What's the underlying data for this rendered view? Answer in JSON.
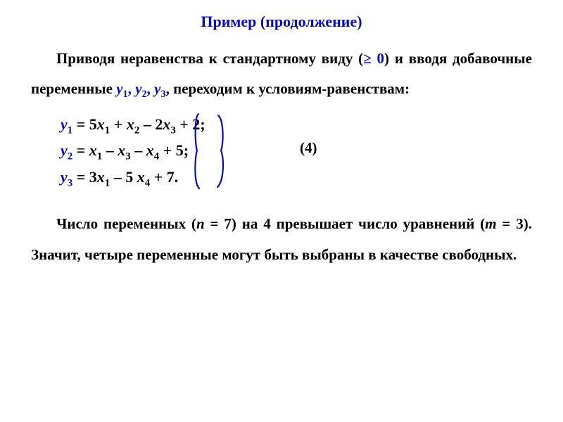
{
  "colors": {
    "text": "#000000",
    "accent": "#0a0bbf",
    "background": "#ffffff"
  },
  "title": "Пример (продолжение)",
  "para1": {
    "t1": "Приводя неравенства к стандартному виду (",
    "ge": "≥ 0",
    "t2": ") и вводя добавочные переменные ",
    "vars": "y",
    "s1": "1",
    "comma1": ", ",
    "s2": "2",
    "comma2": ", ",
    "s3": "3",
    "t3": ", переходим к условиям-равенствам:"
  },
  "equations": {
    "label": "(4)",
    "lines": [
      {
        "lhs_var": "y",
        "lhs_sub": "1",
        "rhs": " = 5x₁ + x₂ – 2x₃ + 2;",
        "rhs_parts": [
          {
            "txt": " = 5",
            "sty": ""
          },
          {
            "txt": "x",
            "sty": "it"
          },
          {
            "txt": "1",
            "sty": "sub"
          },
          {
            "txt": " + ",
            "sty": ""
          },
          {
            "txt": "x",
            "sty": "it"
          },
          {
            "txt": "2",
            "sty": "sub"
          },
          {
            "txt": " – 2",
            "sty": ""
          },
          {
            "txt": "x",
            "sty": "it"
          },
          {
            "txt": "3",
            "sty": "sub"
          },
          {
            "txt": " + 2;",
            "sty": ""
          }
        ]
      },
      {
        "lhs_var": "y",
        "lhs_sub": "2",
        "rhs_parts": [
          {
            "txt": " = ",
            "sty": ""
          },
          {
            "txt": "x",
            "sty": "it"
          },
          {
            "txt": "1",
            "sty": "sub"
          },
          {
            "txt": " –  ",
            "sty": ""
          },
          {
            "txt": "x",
            "sty": "it"
          },
          {
            "txt": "3",
            "sty": "sub"
          },
          {
            "txt": " –  ",
            "sty": ""
          },
          {
            "txt": "x",
            "sty": "it"
          },
          {
            "txt": "4",
            "sty": "sub"
          },
          {
            "txt": " + 5;",
            "sty": ""
          }
        ]
      },
      {
        "lhs_var": "y",
        "lhs_sub": "3",
        "rhs_parts": [
          {
            "txt": " = 3",
            "sty": ""
          },
          {
            "txt": "x",
            "sty": "it"
          },
          {
            "txt": "1",
            "sty": "sub"
          },
          {
            "txt": " – 5 ",
            "sty": ""
          },
          {
            "txt": "x",
            "sty": "it"
          },
          {
            "txt": "4",
            "sty": "sub"
          },
          {
            "txt": " + 7.",
            "sty": ""
          }
        ]
      }
    ]
  },
  "para2": {
    "t1": "Число переменных (",
    "nvar": "n",
    "eq1": " = 7",
    "t2": ") на 4 превышает число уравнений (",
    "mvar": "m",
    "eq2": " = 3",
    "t3": "). Значит, четыре переменные могут быть выбраны в качестве свободных."
  }
}
